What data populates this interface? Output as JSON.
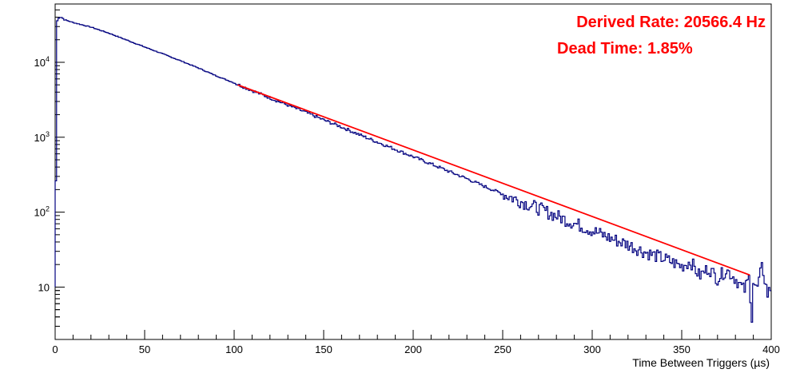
{
  "chart_data": {
    "type": "line",
    "title": "",
    "xlabel": "Time Between Triggers (µs)",
    "ylabel": "",
    "xlim": [
      0,
      400
    ],
    "ylim": [
      2,
      60000
    ],
    "y_scale": "log",
    "grid": false,
    "x_tick_labels": [
      "0",
      "50",
      "100",
      "150",
      "200",
      "250",
      "300",
      "350",
      "400"
    ],
    "y_tick_labels": [
      {
        "value": 10,
        "base": "10",
        "exp": ""
      },
      {
        "value": 100,
        "base": "10",
        "exp": "2"
      },
      {
        "value": 1000,
        "base": "10",
        "exp": "3"
      },
      {
        "value": 10000,
        "base": "10",
        "exp": "4"
      }
    ],
    "annotations": [
      "Derived Rate: 20566.4 Hz",
      "Dead Time: 1.85%"
    ],
    "series": [
      {
        "color": "#00007f",
        "x": [
          0,
          1,
          2,
          3,
          4,
          5,
          6,
          10,
          20,
          30,
          40,
          50,
          60,
          70,
          80,
          90,
          100,
          110,
          120,
          130,
          140,
          150,
          160,
          170,
          180,
          190,
          200,
          210,
          220,
          230,
          240,
          250,
          260,
          270,
          280,
          290,
          300,
          310,
          320,
          330,
          340,
          350,
          355,
          360,
          365,
          370,
          375,
          380,
          385,
          388,
          389,
          390,
          392,
          395,
          398,
          400
        ],
        "y": [
          10,
          35000,
          39000,
          40000,
          39500,
          37000,
          36500,
          34000,
          29500,
          24500,
          19800,
          16000,
          13000,
          10500,
          8400,
          6600,
          5300,
          4200,
          3350,
          2680,
          2150,
          1700,
          1370,
          1080,
          860,
          690,
          550,
          440,
          350,
          280,
          220,
          175,
          140,
          112,
          89,
          71,
          57,
          45,
          37,
          29,
          24,
          19,
          22,
          14,
          18,
          13,
          17,
          13,
          9,
          14,
          3,
          12,
          9,
          19,
          8,
          10
        ]
      },
      {
        "color": "#ff0000",
        "type": "fit",
        "x_range": [
          102,
          388
        ],
        "y_at_start": 5000,
        "y_at_end": 14.5
      }
    ]
  }
}
